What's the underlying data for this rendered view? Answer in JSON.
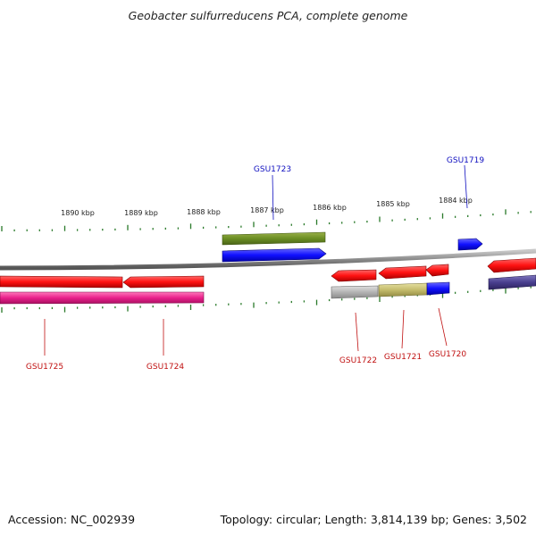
{
  "title": "Geobacter sulfurreducens PCA, complete genome",
  "footer": {
    "accession": "Accession: NC_002939",
    "summary": "Topology: circular; Length: 3,814,139 bp; Genes: 3,502"
  },
  "colors": {
    "forward_label": "#1010c0",
    "reverse_label": "#c01010",
    "tick": "#2a7a2a",
    "backbone": "#8a8a8a"
  },
  "scale": {
    "unit": "kbp",
    "tick_labels": [
      "1890 kbp",
      "1889 kbp",
      "1888 kbp",
      "1887 kbp",
      "1886 kbp",
      "1885 kbp",
      "1884 kbp"
    ]
  },
  "genes": {
    "forward": [
      {
        "label": "GSU1723",
        "color": "#1a1aff"
      },
      {
        "label": "GSU1719",
        "color": "#1a1aff"
      }
    ],
    "reverse": [
      {
        "label": "GSU1725",
        "color": "#ff1a1a"
      },
      {
        "label": "GSU1724",
        "color": "#ff1a1a"
      },
      {
        "label": "GSU1722",
        "color": "#ff1a1a"
      },
      {
        "label": "GSU1721",
        "color": "#ff1a1a"
      },
      {
        "label": "GSU1720",
        "color": "#ff1a1a"
      }
    ]
  },
  "features": {
    "forward_cds": "#6b8e23",
    "reverse_cds": "#e8308a",
    "grey_cds": "#b8b8b8",
    "olive_cds": "#c8c070",
    "slate_cds": "#4a3f8f"
  }
}
